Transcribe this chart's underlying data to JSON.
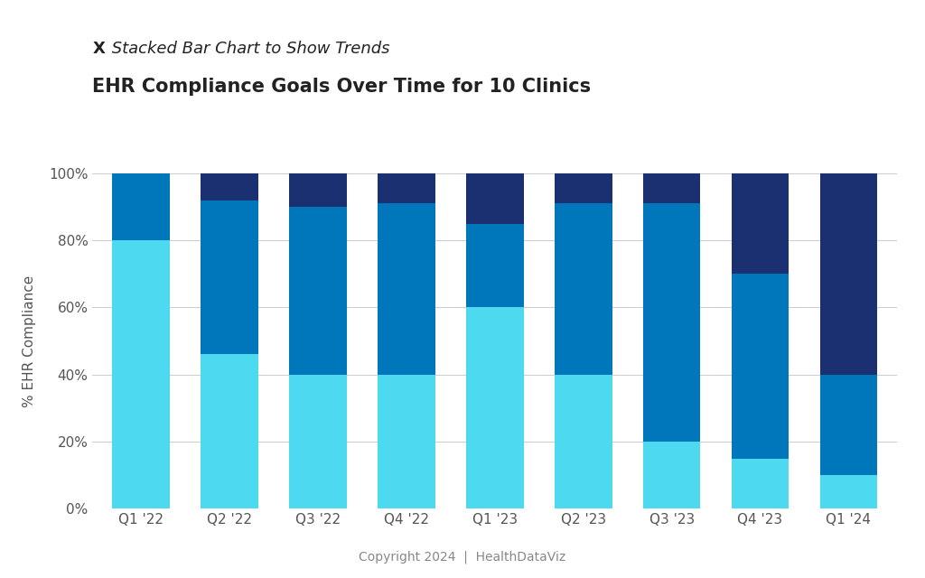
{
  "categories": [
    "Q1 '22",
    "Q2 '22",
    "Q3 '22",
    "Q4 '22",
    "Q1 '23",
    "Q2 '23",
    "Q3 '23",
    "Q4 '23",
    "Q1 '24"
  ],
  "series": {
    "light_cyan": [
      80,
      46,
      40,
      40,
      60,
      40,
      20,
      15,
      10
    ],
    "medium_blue": [
      20,
      46,
      50,
      51,
      25,
      51,
      71,
      55,
      30
    ],
    "dark_navy": [
      0,
      8,
      10,
      9,
      15,
      9,
      9,
      30,
      60
    ]
  },
  "colors": {
    "light_cyan": "#4DD9F0",
    "medium_blue": "#0077BB",
    "dark_navy": "#1B3070"
  },
  "title_label": "X",
  "title_italic": " Stacked Bar Chart to Show Trends",
  "title_main": "EHR Compliance Goals Over Time for 10 Clinics",
  "ylabel": "% EHR Compliance",
  "footer": "Copyright 2024  |  HealthDataViz",
  "ylim": [
    0,
    100
  ],
  "yticks": [
    0,
    20,
    40,
    60,
    80,
    100
  ],
  "ytick_labels": [
    "0%",
    "20%",
    "40%",
    "60%",
    "80%",
    "100%"
  ],
  "background_color": "#FFFFFF",
  "title_fontsize": 13,
  "main_title_fontsize": 15,
  "axis_label_fontsize": 11,
  "tick_fontsize": 11,
  "footer_fontsize": 10,
  "bar_width": 0.65
}
